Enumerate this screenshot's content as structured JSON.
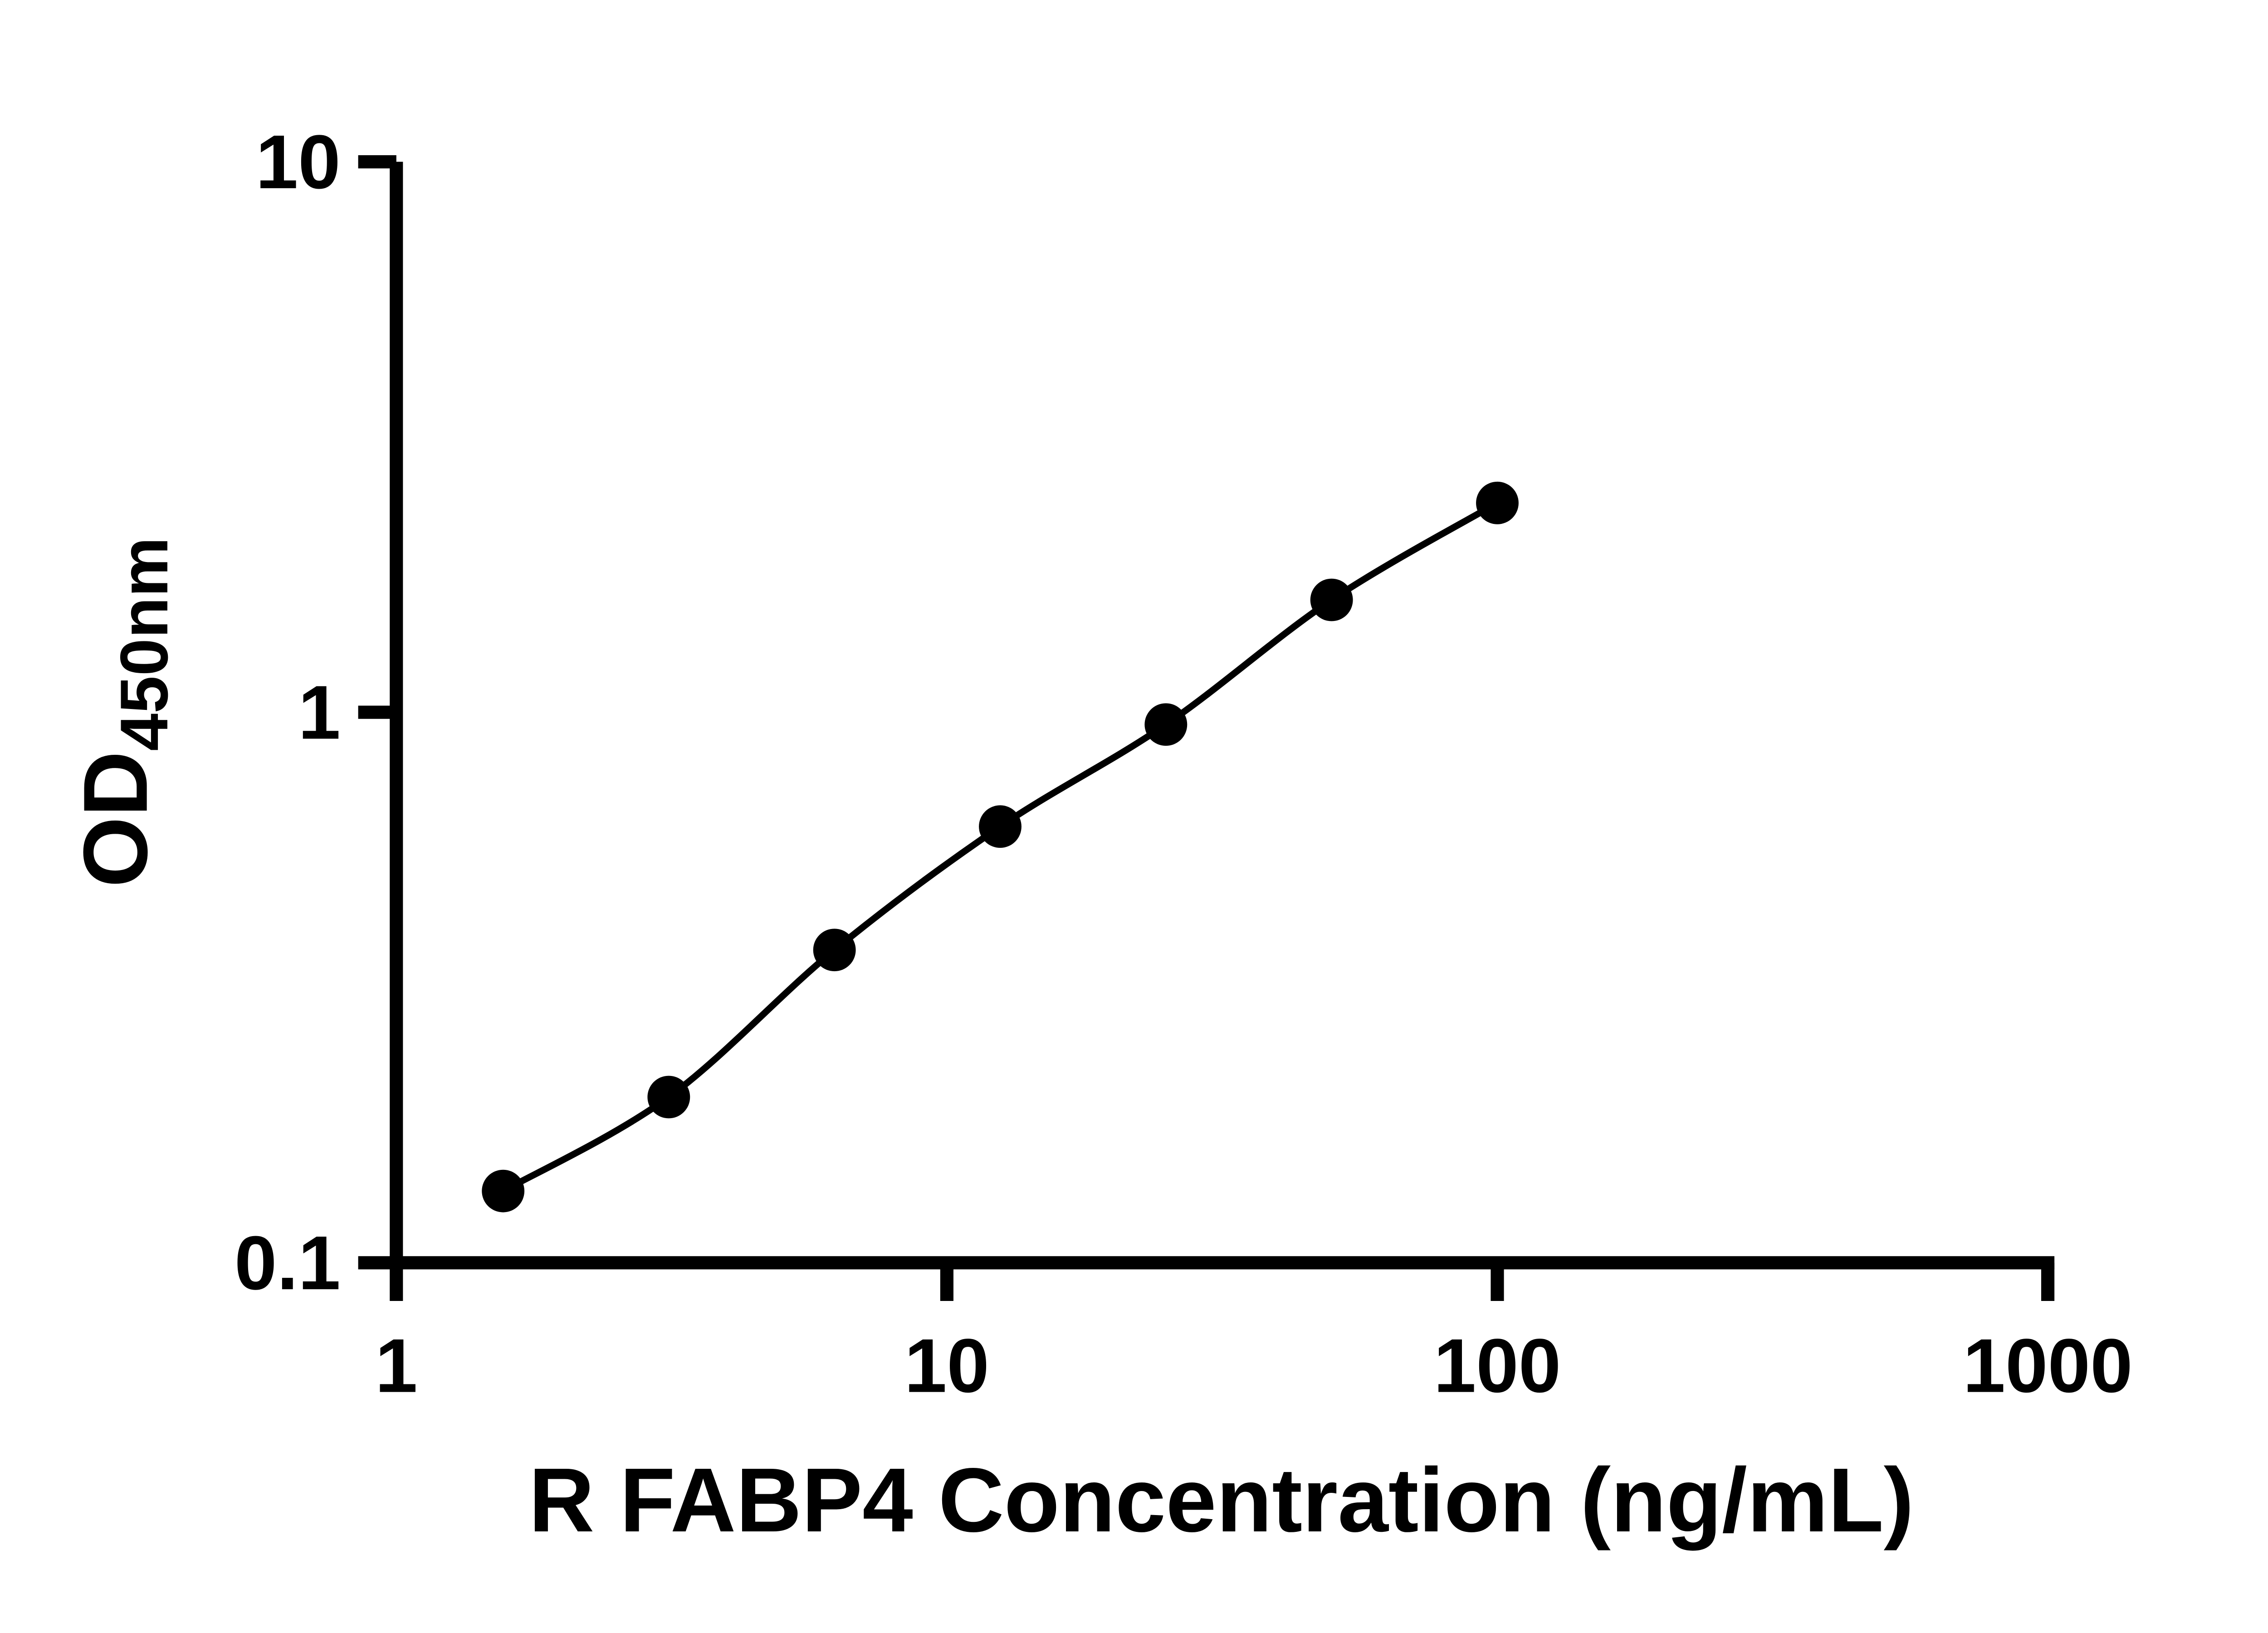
{
  "figure": {
    "background": "#ffffff"
  },
  "chart_data": {
    "type": "scatter",
    "connect": "smooth",
    "x": [
      1.563,
      3.125,
      6.25,
      12.5,
      25,
      50,
      100
    ],
    "y": [
      0.135,
      0.2,
      0.37,
      0.62,
      0.95,
      1.6,
      2.4
    ],
    "x_scale": "log",
    "y_scale": "log",
    "xlim": [
      1,
      1000
    ],
    "ylim": [
      0.1,
      10
    ],
    "x_ticks": [
      1,
      10,
      100,
      1000
    ],
    "x_tick_labels": [
      "1",
      "10",
      "100",
      "1000"
    ],
    "y_ticks": [
      0.1,
      1,
      10
    ],
    "y_tick_labels": [
      "0.1",
      "1",
      "10"
    ],
    "xlabel": "R FABP4 Concentration (ng/mL)",
    "ylabel_main": "OD",
    "ylabel_sub": "450nm",
    "title": "",
    "grid": false,
    "legend_position": "none",
    "marker_color": "#000000",
    "marker_radius": 14.5,
    "line_color": "#000000",
    "axis_color": "#000000"
  }
}
